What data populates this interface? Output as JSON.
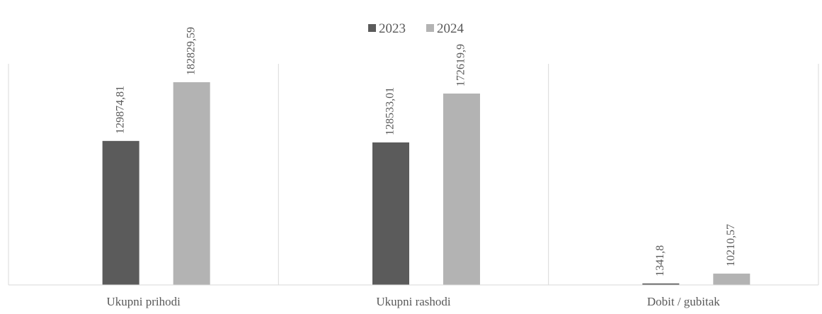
{
  "chart_data": {
    "type": "bar",
    "title": "",
    "xlabel": "",
    "ylabel": "",
    "categories": [
      "Ukupni prihodi",
      "Ukupni rashodi",
      "Dobit / gubitak"
    ],
    "series": [
      {
        "name": "2023",
        "values": [
          129874.81,
          128533.01,
          1341.8
        ],
        "labels": [
          "129874,81",
          "128533,01",
          "1341,8"
        ],
        "color": "#5b5b5b"
      },
      {
        "name": "2024",
        "values": [
          182829.59,
          172619.9,
          10210.57
        ],
        "labels": [
          "182829,59",
          "172619,9",
          "10210,57"
        ],
        "color": "#b3b3b3"
      }
    ],
    "ylim": [
      0,
      182829.59
    ],
    "grid": false,
    "legend_position": "top-center",
    "data_labels": "rotated-vertical"
  },
  "colors": {
    "axis": "#d9d9d9",
    "text": "#595959"
  }
}
